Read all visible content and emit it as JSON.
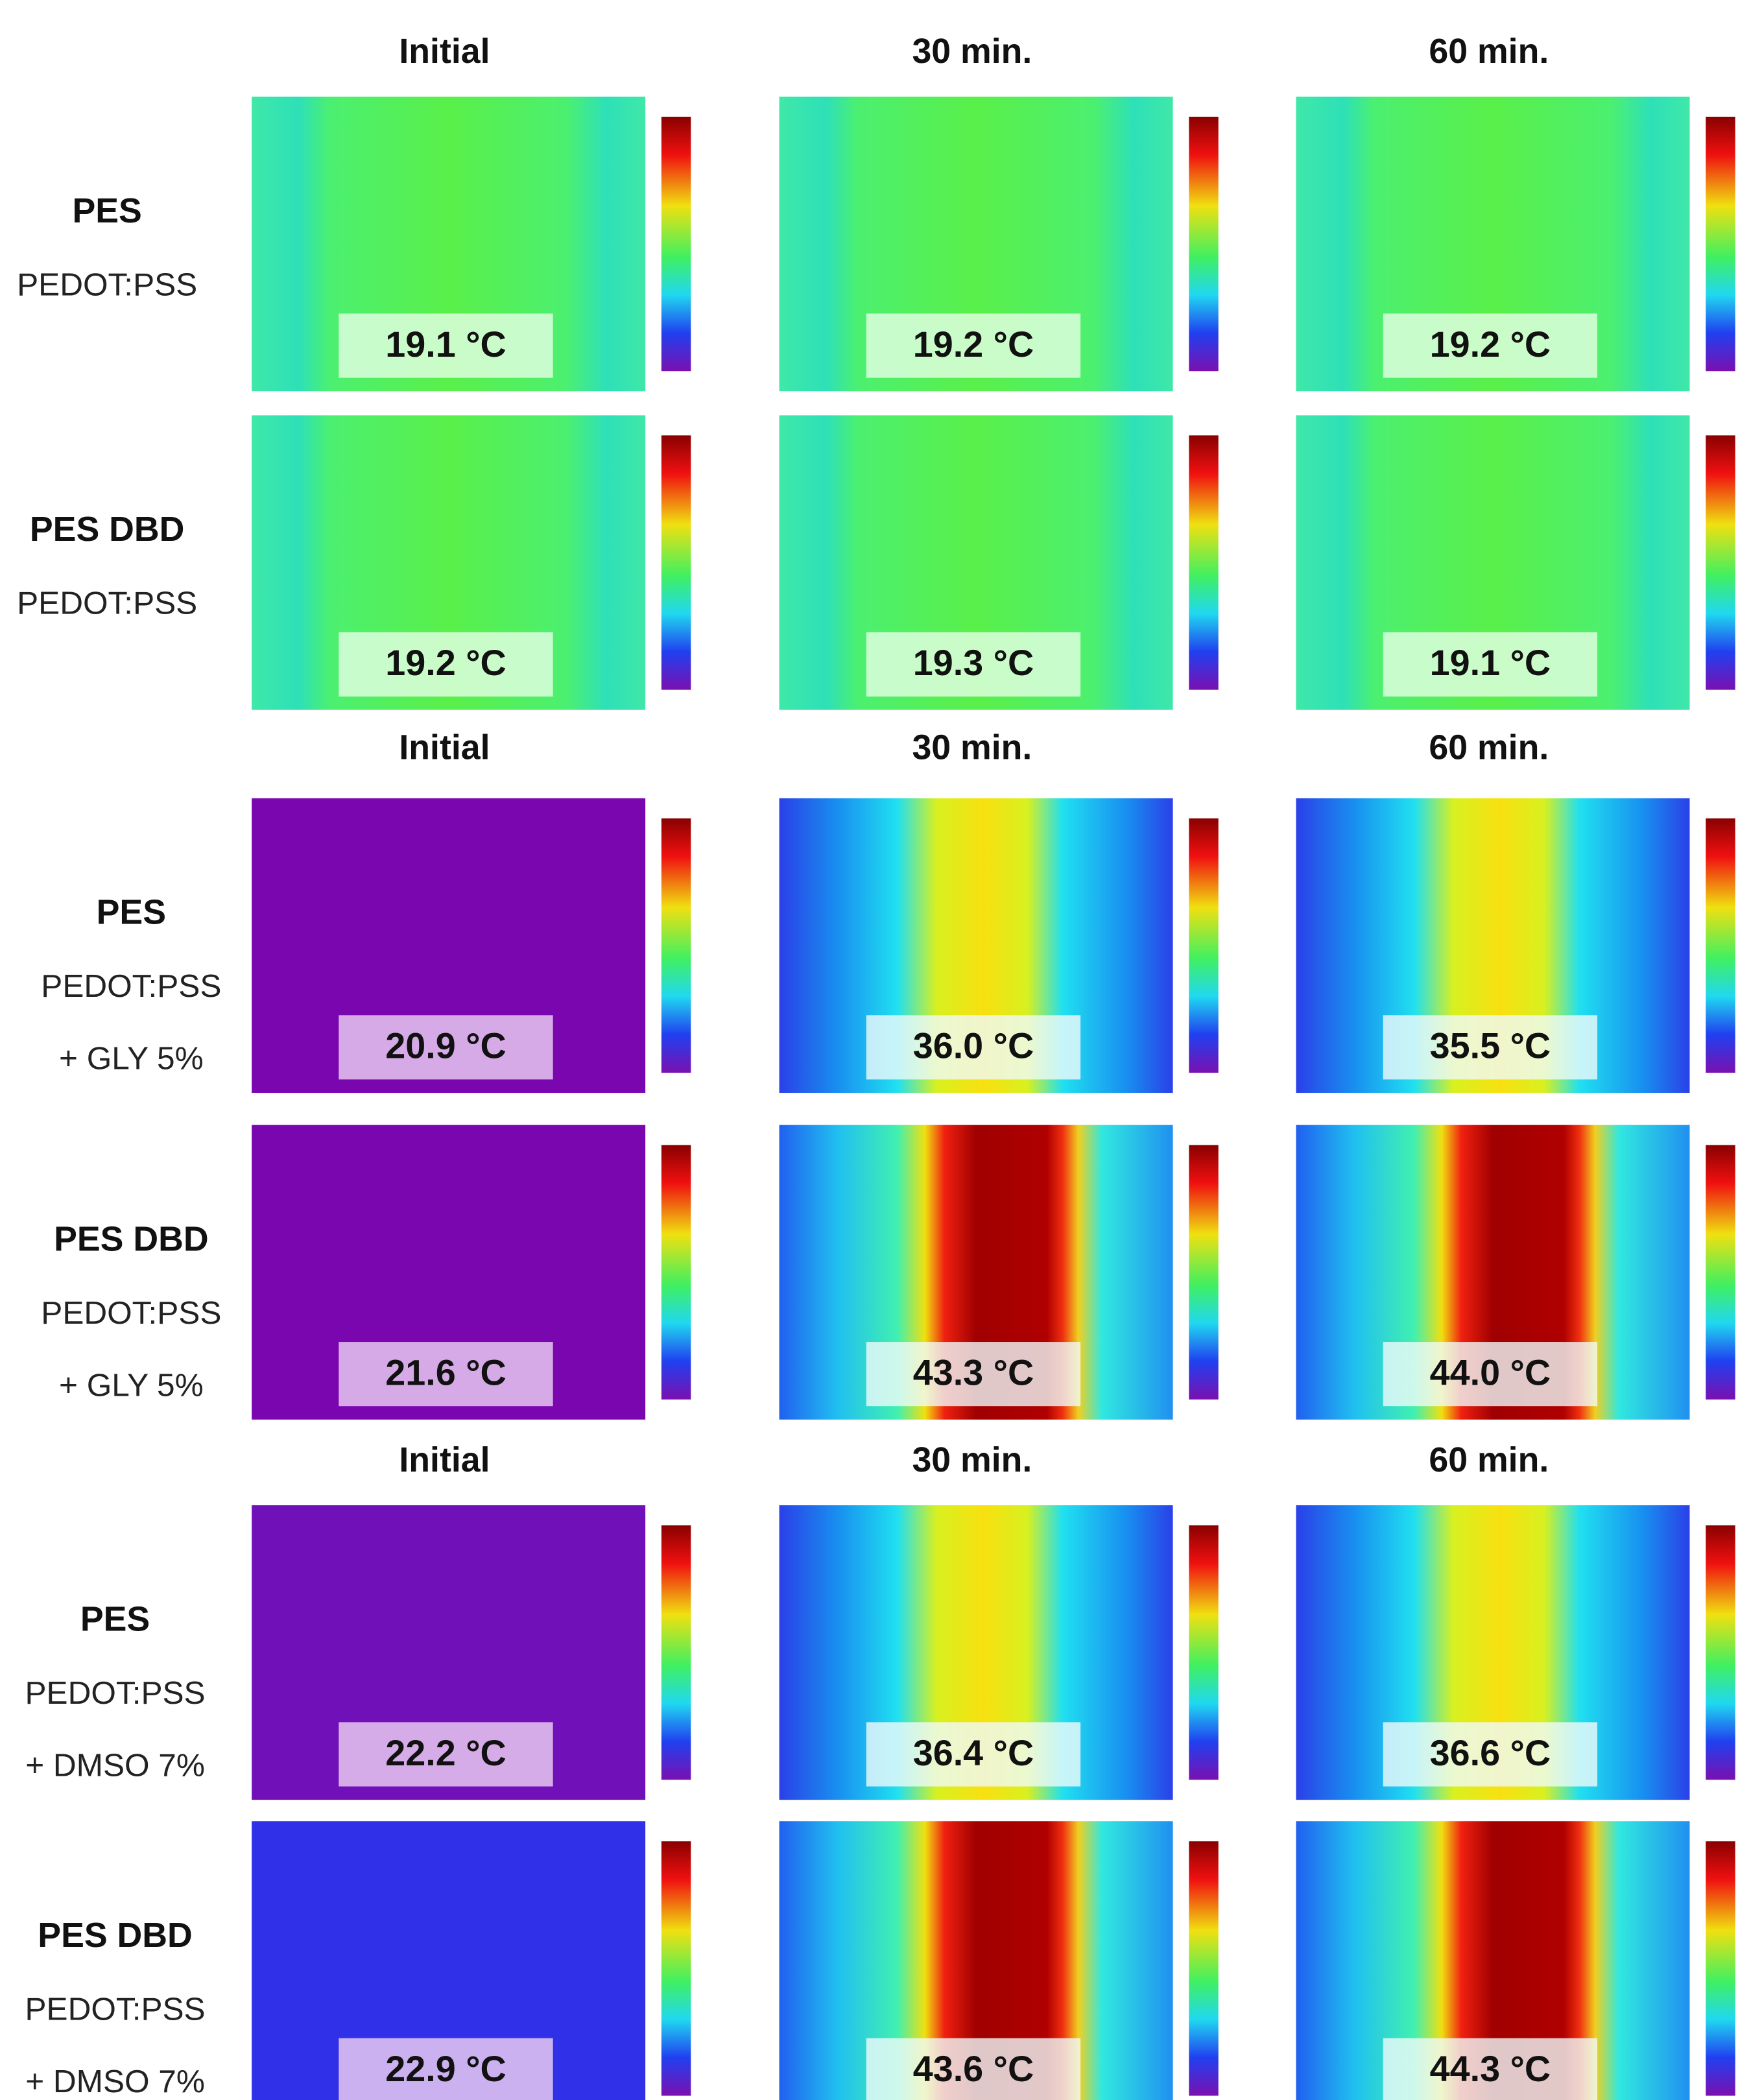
{
  "sections": [
    {
      "columns": [
        "Initial",
        "30 min.",
        "60 min."
      ],
      "rows": [
        {
          "title": "PES",
          "lines": [
            "PEDOT:PSS"
          ],
          "cells": [
            "19.1 °C",
            "19.2 °C",
            "19.2 °C"
          ]
        },
        {
          "title": "PES DBD",
          "lines": [
            "PEDOT:PSS"
          ],
          "cells": [
            "19.2 °C",
            "19.3 °C",
            "19.1 °C"
          ]
        }
      ]
    },
    {
      "columns": [
        "Initial",
        "30 min.",
        "60 min."
      ],
      "rows": [
        {
          "title": "PES",
          "lines": [
            "PEDOT:PSS",
            "+ GLY 5%"
          ],
          "cells": [
            "20.9 °C",
            "36.0 °C",
            "35.5 °C"
          ]
        },
        {
          "title": "PES DBD",
          "lines": [
            "PEDOT:PSS",
            "+ GLY 5%"
          ],
          "cells": [
            "21.6 °C",
            "43.3 °C",
            "44.0 °C"
          ]
        }
      ]
    },
    {
      "columns": [
        "Initial",
        "30 min.",
        "60 min."
      ],
      "rows": [
        {
          "title": "PES",
          "lines": [
            "PEDOT:PSS",
            "+ DMSO 7%"
          ],
          "cells": [
            "22.2 °C",
            "36.4 °C",
            "36.6 °C"
          ]
        },
        {
          "title": "PES DBD",
          "lines": [
            "PEDOT:PSS",
            "+ DMSO 7%"
          ],
          "cells": [
            "22.9 °C",
            "43.6 °C",
            "44.3 °C"
          ]
        }
      ]
    }
  ]
}
